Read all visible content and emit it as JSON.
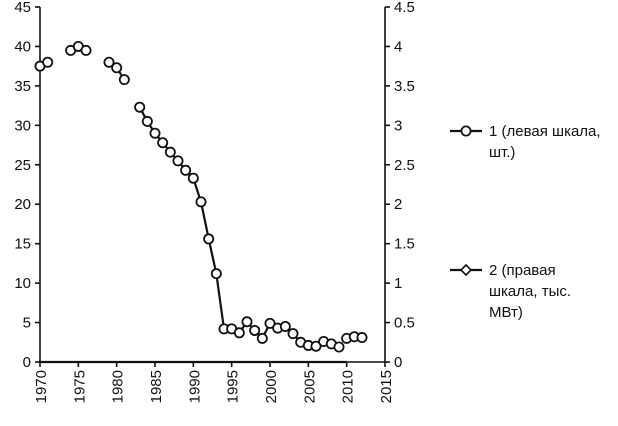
{
  "chart_data": {
    "type": "line",
    "title": "",
    "xlabel": "",
    "ylabel": "",
    "x_ticks": [
      "1970",
      "1975",
      "1980",
      "1985",
      "1990",
      "1995",
      "2000",
      "2005",
      "2010",
      "2015"
    ],
    "xlim": [
      1970,
      2015
    ],
    "y_left_ticks": [
      "0",
      "5",
      "10",
      "15",
      "20",
      "25",
      "30",
      "35",
      "40",
      "45"
    ],
    "ylim_left": [
      0,
      45
    ],
    "y_right_ticks": [
      "0",
      "0.5",
      "1",
      "1.5",
      "2",
      "2.5",
      "3",
      "3.5",
      "4",
      "4.5"
    ],
    "ylim_right": [
      0,
      4.5
    ],
    "grid": false,
    "legend_position": "right",
    "series": [
      {
        "name": "1 (левая шкала, шт.)",
        "axis": "left",
        "marker": "circle",
        "legend_lines": [
          "1 (левая шкала,",
          "шт.)"
        ],
        "segments": [
          [
            [
              1970,
              37.5
            ],
            [
              1971,
              38
            ]
          ],
          [
            [
              1974,
              39.5
            ],
            [
              1975,
              40
            ],
            [
              1976,
              39.5
            ]
          ],
          [
            [
              1979,
              38
            ],
            [
              1980,
              37.3
            ],
            [
              1981,
              35.8
            ]
          ],
          [
            [
              1983,
              32.3
            ],
            [
              1984,
              30.5
            ],
            [
              1985,
              29
            ],
            [
              1986,
              27.8
            ],
            [
              1987,
              26.6
            ],
            [
              1988,
              25.5
            ],
            [
              1989,
              24.3
            ],
            [
              1990,
              23.3
            ],
            [
              1991,
              20.3
            ],
            [
              1992,
              15.6
            ],
            [
              1993,
              11.2
            ],
            [
              1994,
              4.2
            ],
            [
              1995,
              4.2
            ],
            [
              1996,
              3.7
            ],
            [
              1997,
              5.1
            ],
            [
              1998,
              4.0
            ],
            [
              1999,
              3.0
            ],
            [
              2000,
              4.9
            ],
            [
              2001,
              4.3
            ],
            [
              2002,
              4.5
            ],
            [
              2003,
              3.6
            ],
            [
              2004,
              2.5
            ],
            [
              2005,
              2.1
            ],
            [
              2006,
              2.0
            ],
            [
              2007,
              2.6
            ],
            [
              2008,
              2.3
            ],
            [
              2009,
              1.9
            ]
          ],
          [
            [
              2010,
              3.0
            ],
            [
              2011,
              3.2
            ],
            [
              2012,
              3.1
            ]
          ]
        ]
      },
      {
        "name": "2 (правая шкала, тыс. МВт)",
        "axis": "right",
        "marker": "diamond",
        "legend_lines": [
          "2 (правая",
          "шкала, тыс.",
          "МВт)"
        ],
        "segments": [
          [
            [
              1970,
              0
            ],
            [
              2010,
              0
            ]
          ]
        ]
      }
    ]
  }
}
